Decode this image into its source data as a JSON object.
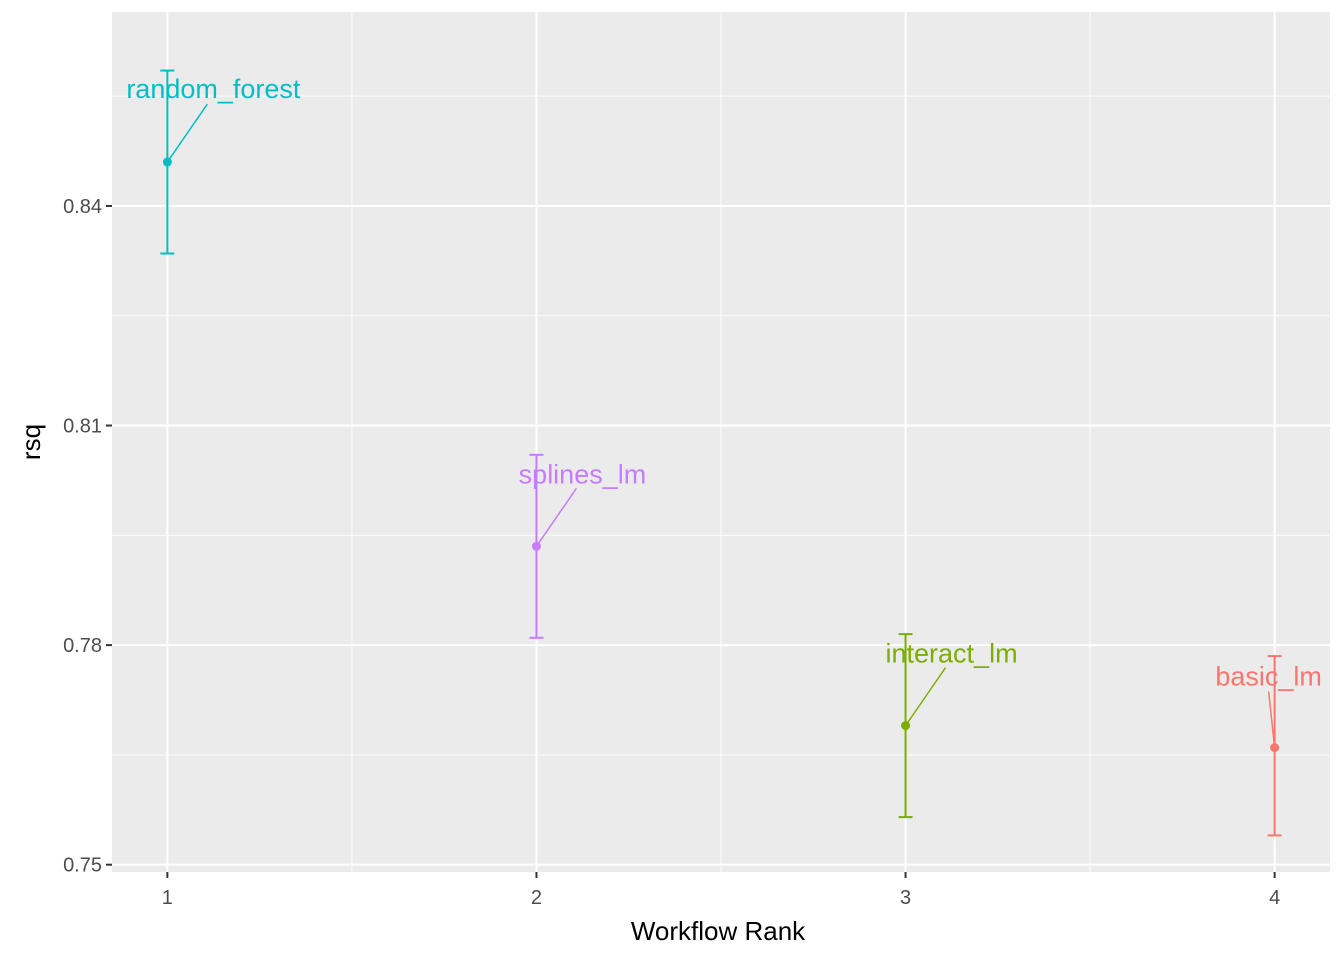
{
  "chart_data": {
    "type": "scatter",
    "xlabel": "Workflow Rank",
    "ylabel": "rsq",
    "xlim": [
      0.85,
      4.15
    ],
    "ylim": [
      0.749,
      0.8665
    ],
    "x_ticks": [
      1,
      2,
      3,
      4
    ],
    "x_tick_labels": [
      "1",
      "2",
      "3",
      "4"
    ],
    "y_ticks": [
      0.75,
      0.78,
      0.81,
      0.84
    ],
    "y_tick_labels": [
      "0.75",
      "0.78",
      "0.81",
      "0.84"
    ],
    "grid": true,
    "legend": "none",
    "series": [
      {
        "name": "random_forest",
        "rank": 1,
        "rsq": 0.846,
        "lower": 0.8335,
        "upper": 0.8585,
        "color": "#00BFC4"
      },
      {
        "name": "splines_lm",
        "rank": 2,
        "rsq": 0.7935,
        "lower": 0.781,
        "upper": 0.806,
        "color": "#C77CFF"
      },
      {
        "name": "interact_lm",
        "rank": 3,
        "rsq": 0.769,
        "lower": 0.7565,
        "upper": 0.7815,
        "color": "#7CAE00"
      },
      {
        "name": "basic_lm",
        "rank": 4,
        "rsq": 0.766,
        "lower": 0.754,
        "upper": 0.7785,
        "color": "#F8766D"
      }
    ]
  }
}
